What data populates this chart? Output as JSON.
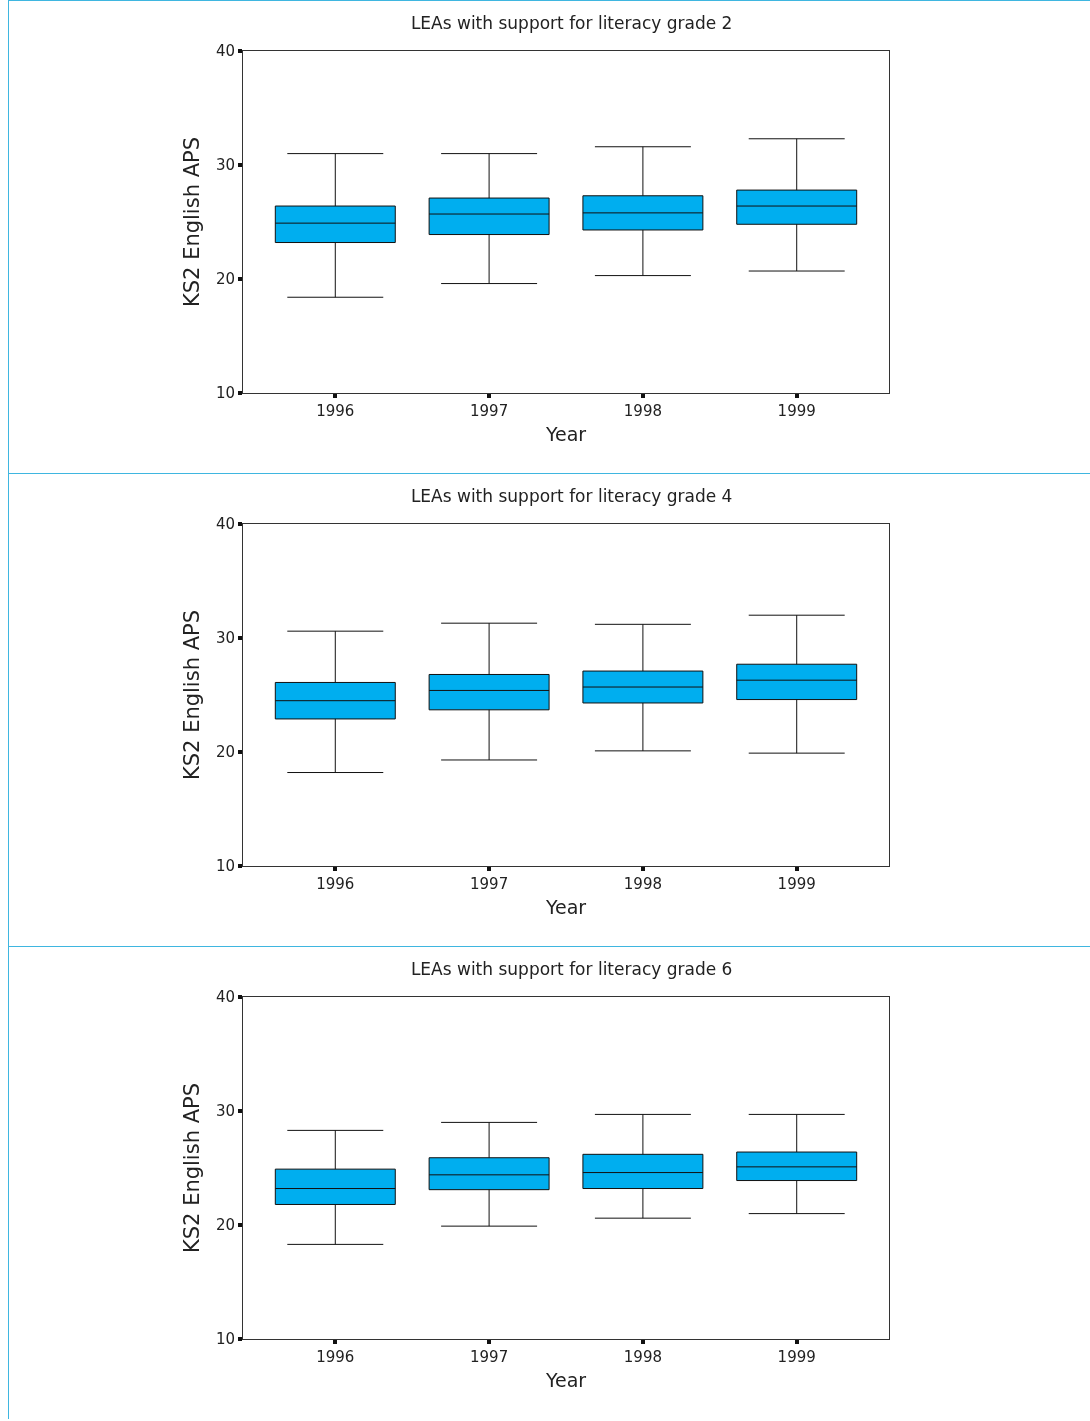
{
  "chart_data": [
    {
      "type": "box",
      "title": "LEAs with support for literacy grade 2",
      "xlabel": "Year",
      "ylabel": "KS2 English APS",
      "categories": [
        "1996",
        "1997",
        "1998",
        "1999"
      ],
      "color": "#00aeef",
      "ylim": [
        10,
        40
      ],
      "yticks": [
        10,
        20,
        30,
        40
      ],
      "grid": false,
      "boxes": [
        {
          "low": 18.4,
          "q1": 23.2,
          "median": 24.9,
          "q3": 26.4,
          "high": 31.0
        },
        {
          "low": 19.6,
          "q1": 23.9,
          "median": 25.7,
          "q3": 27.1,
          "high": 31.0
        },
        {
          "low": 20.3,
          "q1": 24.3,
          "median": 25.8,
          "q3": 27.3,
          "high": 31.6
        },
        {
          "low": 20.7,
          "q1": 24.8,
          "median": 26.4,
          "q3": 27.8,
          "high": 32.3
        }
      ]
    },
    {
      "type": "box",
      "title": "LEAs with support for literacy grade 4",
      "xlabel": "Year",
      "ylabel": "KS2 English APS",
      "categories": [
        "1996",
        "1997",
        "1998",
        "1999"
      ],
      "color": "#00aeef",
      "ylim": [
        10,
        40
      ],
      "yticks": [
        10,
        20,
        30,
        40
      ],
      "grid": false,
      "boxes": [
        {
          "low": 18.2,
          "q1": 22.9,
          "median": 24.5,
          "q3": 26.1,
          "high": 30.6
        },
        {
          "low": 19.3,
          "q1": 23.7,
          "median": 25.4,
          "q3": 26.8,
          "high": 31.3
        },
        {
          "low": 20.1,
          "q1": 24.3,
          "median": 25.7,
          "q3": 27.1,
          "high": 31.2
        },
        {
          "low": 19.9,
          "q1": 24.6,
          "median": 26.3,
          "q3": 27.7,
          "high": 32.0
        }
      ]
    },
    {
      "type": "box",
      "title": "LEAs with support for literacy grade 6",
      "xlabel": "Year",
      "ylabel": "KS2 English APS",
      "categories": [
        "1996",
        "1997",
        "1998",
        "1999"
      ],
      "color": "#00aeef",
      "ylim": [
        10,
        40
      ],
      "yticks": [
        10,
        20,
        30,
        40
      ],
      "grid": false,
      "boxes": [
        {
          "low": 18.3,
          "q1": 21.8,
          "median": 23.2,
          "q3": 24.9,
          "high": 28.3
        },
        {
          "low": 19.9,
          "q1": 23.1,
          "median": 24.4,
          "q3": 25.9,
          "high": 29.0
        },
        {
          "low": 20.6,
          "q1": 23.2,
          "median": 24.6,
          "q3": 26.2,
          "high": 29.7
        },
        {
          "low": 21.0,
          "q1": 23.9,
          "median": 25.1,
          "q3": 26.4,
          "high": 29.7
        }
      ]
    }
  ]
}
